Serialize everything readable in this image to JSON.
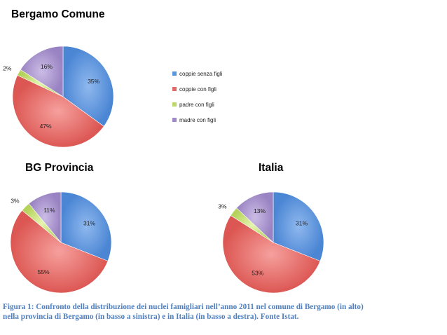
{
  "legend": {
    "items": [
      {
        "label": "coppie senza figli",
        "color": "#5b95dd"
      },
      {
        "label": "coppie con figli",
        "color": "#e06b68"
      },
      {
        "label": "padre con figli",
        "color": "#bcd86a"
      },
      {
        "label": "madre con figli",
        "color": "#a08bc6"
      }
    ]
  },
  "chart_data": [
    {
      "type": "pie",
      "title": "Bergamo Comune",
      "categories": [
        "coppie senza figli",
        "coppie con figli",
        "padre con figli",
        "madre con figli"
      ],
      "values": [
        35,
        47,
        2,
        16
      ],
      "labels": [
        "35%",
        "47%",
        "2%",
        "16%"
      ],
      "legend": "right"
    },
    {
      "type": "pie",
      "title": "BG Provincia",
      "categories": [
        "coppie senza figli",
        "coppie con figli",
        "padre con figli",
        "madre con figli"
      ],
      "values": [
        31,
        55,
        3,
        11
      ],
      "labels": [
        "31%",
        "55%",
        "3%",
        "11%"
      ]
    },
    {
      "type": "pie",
      "title": "Italia",
      "categories": [
        "coppie senza figli",
        "coppie con figli",
        "padre con figli",
        "madre con figli"
      ],
      "values": [
        31,
        53,
        3,
        13
      ],
      "labels": [
        "31%",
        "53%",
        "3%",
        "13%"
      ]
    }
  ],
  "caption": {
    "line1": "Figura 1: Confronto della distribuzione dei nuclei famigliari nell’anno 2011 nel comune di Bergamo (in alto)",
    "line2": "nella provincia di Bergamo (in basso a sinistra) e in Italia (in basso a destra). Fonte Istat."
  }
}
